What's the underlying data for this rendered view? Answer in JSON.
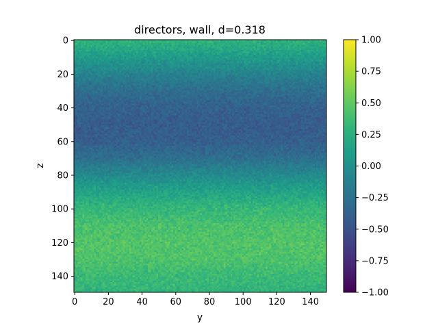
{
  "chart_data": {
    "type": "heatmap",
    "title": "directors, wall, d=0.318",
    "xlabel": "y",
    "ylabel": "z",
    "x_range": [
      0,
      150
    ],
    "y_range": [
      0,
      150
    ],
    "y_inverted": true,
    "x_ticks": [
      0,
      20,
      40,
      60,
      80,
      100,
      120,
      140
    ],
    "y_ticks": [
      0,
      20,
      40,
      60,
      80,
      100,
      120,
      140
    ],
    "colormap": "viridis",
    "colorbar": {
      "vmin": -1.0,
      "vmax": 1.0,
      "ticks": [
        "1.00",
        "0.75",
        "0.50",
        "0.25",
        "0.00",
        "−0.25",
        "−0.50",
        "−0.75",
        "−1.00"
      ],
      "tick_values": [
        1.0,
        0.75,
        0.5,
        0.25,
        0.0,
        -0.25,
        -0.5,
        -0.75,
        -1.0
      ]
    },
    "profile_along_z": {
      "description": "approximate mean value per row (z), roughly uniform along y, with pixel noise",
      "z": [
        0,
        10,
        20,
        30,
        40,
        50,
        60,
        70,
        80,
        90,
        100,
        110,
        120,
        130,
        140,
        150
      ],
      "values": [
        0.3,
        0.1,
        -0.1,
        -0.28,
        -0.38,
        -0.42,
        -0.4,
        -0.28,
        -0.05,
        0.15,
        0.32,
        0.42,
        0.45,
        0.44,
        0.35,
        0.3
      ],
      "noise_amplitude": 0.12
    }
  }
}
